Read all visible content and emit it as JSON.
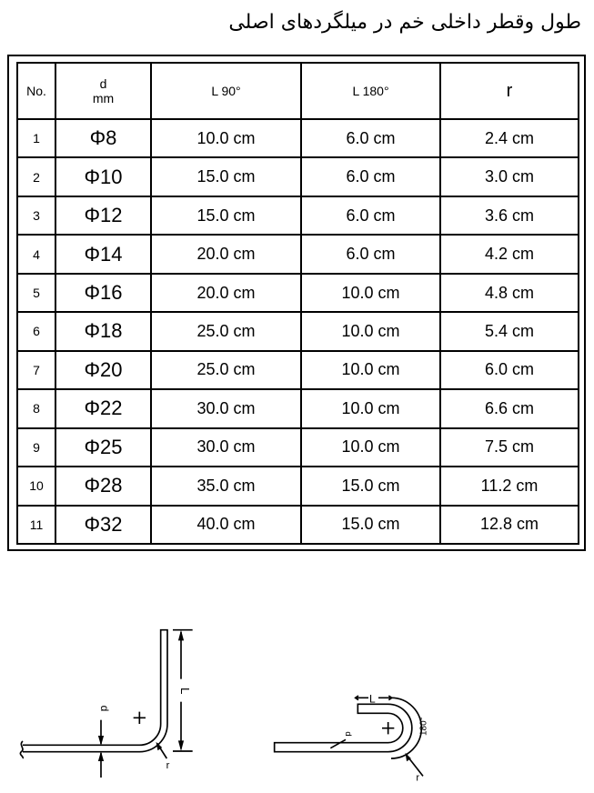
{
  "title": "طول وقطر داخلی خم در میلگردهای اصلی",
  "table": {
    "headers": {
      "no": "No.",
      "d": "d",
      "d_unit": "mm",
      "l90": "L 90°",
      "l180": "L 180°",
      "r": "r"
    },
    "rows": [
      {
        "no": "1",
        "d": "Φ8",
        "l90": "10.0 cm",
        "l180": "6.0 cm",
        "r": "2.4 cm"
      },
      {
        "no": "2",
        "d": "Φ10",
        "l90": "15.0 cm",
        "l180": "6.0 cm",
        "r": "3.0 cm"
      },
      {
        "no": "3",
        "d": "Φ12",
        "l90": "15.0 cm",
        "l180": "6.0 cm",
        "r": "3.6 cm"
      },
      {
        "no": "4",
        "d": "Φ14",
        "l90": "20.0 cm",
        "l180": "6.0 cm",
        "r": "4.2 cm"
      },
      {
        "no": "5",
        "d": "Φ16",
        "l90": "20.0 cm",
        "l180": "10.0 cm",
        "r": "4.8 cm"
      },
      {
        "no": "6",
        "d": "Φ18",
        "l90": "25.0 cm",
        "l180": "10.0 cm",
        "r": "5.4 cm"
      },
      {
        "no": "7",
        "d": "Φ20",
        "l90": "25.0 cm",
        "l180": "10.0 cm",
        "r": "6.0 cm"
      },
      {
        "no": "8",
        "d": "Φ22",
        "l90": "30.0 cm",
        "l180": "10.0 cm",
        "r": "6.6 cm"
      },
      {
        "no": "9",
        "d": "Φ25",
        "l90": "30.0 cm",
        "l180": "10.0 cm",
        "r": "7.5 cm"
      },
      {
        "no": "10",
        "d": "Φ28",
        "l90": "35.0 cm",
        "l180": "15.0 cm",
        "r": "11.2 cm"
      },
      {
        "no": "11",
        "d": "Φ32",
        "l90": "40.0 cm",
        "l180": "15.0 cm",
        "r": "12.8 cm"
      }
    ]
  },
  "figure": {
    "hook90": {
      "length_label": "L",
      "diameter_label": "d",
      "radius_label": "r"
    },
    "hook180": {
      "length_label": "L",
      "diameter_label": "d",
      "radius_label": "r",
      "angle_label": "180°"
    }
  }
}
